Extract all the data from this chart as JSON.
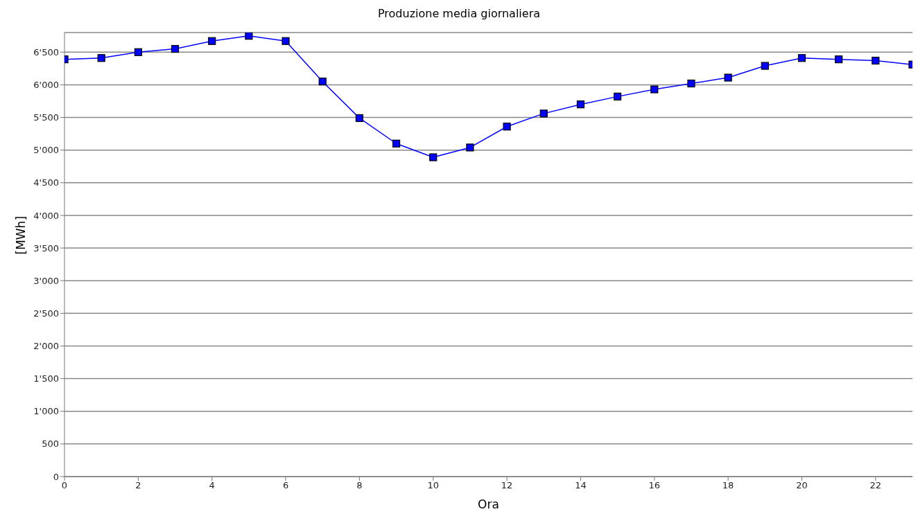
{
  "chart_data": {
    "type": "line",
    "title": "Produzione media giornaliera",
    "xlabel": "Ora",
    "ylabel": "[MWh]",
    "x": [
      0,
      1,
      2,
      3,
      4,
      5,
      6,
      7,
      8,
      9,
      10,
      11,
      12,
      13,
      14,
      15,
      16,
      17,
      18,
      19,
      20,
      21,
      22,
      23
    ],
    "series": [
      {
        "color": "#0000ff",
        "values": [
          6390,
          6410,
          6500,
          6550,
          6670,
          6750,
          6670,
          6050,
          5490,
          5100,
          4890,
          5040,
          5360,
          5560,
          5700,
          5820,
          5930,
          6020,
          6110,
          6290,
          6410,
          6390,
          6370,
          6310
        ]
      }
    ],
    "xlim": [
      0,
      23
    ],
    "xticks": [
      0,
      2,
      4,
      6,
      8,
      10,
      12,
      14,
      16,
      18,
      20,
      22
    ],
    "ylim": [
      0,
      6800
    ],
    "yticks": [
      0,
      500,
      {
        "value": 1000,
        "label": "1'000"
      },
      {
        "value": 1500,
        "label": "1'500"
      },
      {
        "value": 2000,
        "label": "2'000"
      },
      {
        "value": 2500,
        "label": "2'500"
      },
      {
        "value": 3000,
        "label": "3'000"
      },
      {
        "value": 3500,
        "label": "3'500"
      },
      {
        "value": 4000,
        "label": "4'000"
      },
      {
        "value": 4500,
        "label": "4'500"
      },
      {
        "value": 5000,
        "label": "5'000"
      },
      {
        "value": 5500,
        "label": "5'500"
      },
      {
        "value": 6000,
        "label": "6'000"
      },
      {
        "value": 6500,
        "label": "6'500"
      }
    ],
    "grid": "y",
    "marker": "square",
    "line_style": "solid",
    "legend": false
  }
}
